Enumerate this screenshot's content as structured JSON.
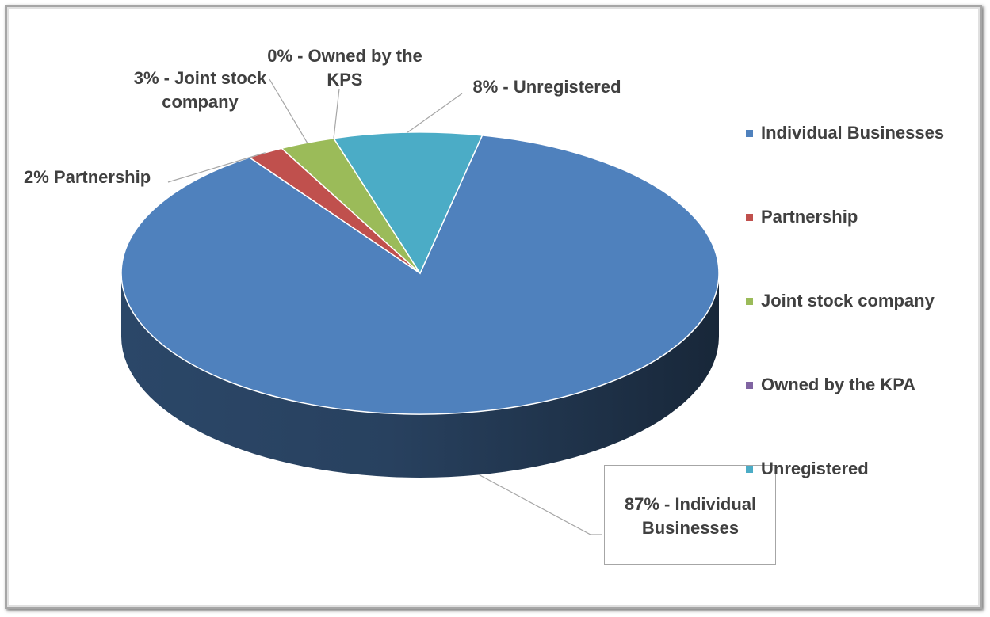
{
  "chart_data": {
    "type": "pie",
    "categories": [
      "Individual Businesses",
      "Partnership",
      "Joint stock company",
      "Owned by the KPA",
      "Unregistered"
    ],
    "values": [
      87,
      2,
      3,
      0,
      8
    ],
    "value_labels": [
      "87% - Individual Businesses",
      "2% Partnership",
      "3% - Joint stock company",
      "0% - Owned by the KPS",
      "8% - Unregistered"
    ],
    "colors": [
      "#4f81bd",
      "#c0504d",
      "#9bbb59",
      "#8064a2",
      "#4bacc6"
    ],
    "legend": "right"
  }
}
